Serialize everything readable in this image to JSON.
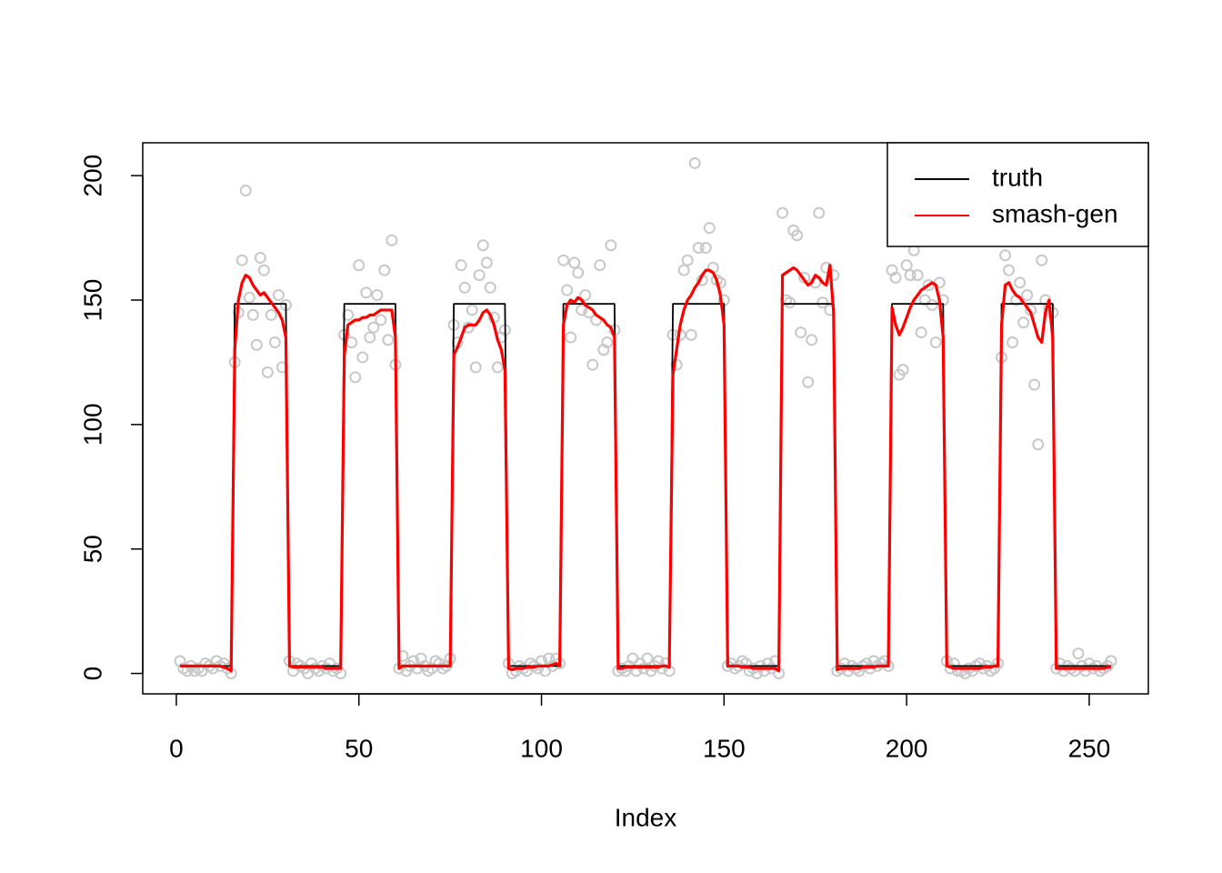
{
  "chart_data": {
    "type": "line",
    "xlabel": "Index",
    "xlim": [
      -9.2,
      266.2
    ],
    "xticks": [
      0,
      50,
      100,
      150,
      200,
      250
    ],
    "ylim": [
      -8.2,
      213.2
    ],
    "yticks": [
      0,
      50,
      100,
      150,
      200
    ],
    "legend": "top-right",
    "x": [
      1,
      2,
      3,
      4,
      5,
      6,
      7,
      8,
      9,
      10,
      11,
      12,
      13,
      14,
      15,
      16,
      17,
      18,
      19,
      20,
      21,
      22,
      23,
      24,
      25,
      26,
      27,
      28,
      29,
      30,
      31,
      32,
      33,
      34,
      35,
      36,
      37,
      38,
      39,
      40,
      41,
      42,
      43,
      44,
      45,
      46,
      47,
      48,
      49,
      50,
      51,
      52,
      53,
      54,
      55,
      56,
      57,
      58,
      59,
      60,
      61,
      62,
      63,
      64,
      65,
      66,
      67,
      68,
      69,
      70,
      71,
      72,
      73,
      74,
      75,
      76,
      77,
      78,
      79,
      80,
      81,
      82,
      83,
      84,
      85,
      86,
      87,
      88,
      89,
      90,
      91,
      92,
      93,
      94,
      95,
      96,
      97,
      98,
      99,
      100,
      101,
      102,
      103,
      104,
      105,
      106,
      107,
      108,
      109,
      110,
      111,
      112,
      113,
      114,
      115,
      116,
      117,
      118,
      119,
      120,
      121,
      122,
      123,
      124,
      125,
      126,
      127,
      128,
      129,
      130,
      131,
      132,
      133,
      134,
      135,
      136,
      137,
      138,
      139,
      140,
      141,
      142,
      143,
      144,
      145,
      146,
      147,
      148,
      149,
      150,
      151,
      152,
      153,
      154,
      155,
      156,
      157,
      158,
      159,
      160,
      161,
      162,
      163,
      164,
      165,
      166,
      167,
      168,
      169,
      170,
      171,
      172,
      173,
      174,
      175,
      176,
      177,
      178,
      179,
      180,
      181,
      182,
      183,
      184,
      185,
      186,
      187,
      188,
      189,
      190,
      191,
      192,
      193,
      194,
      195,
      196,
      197,
      198,
      199,
      200,
      201,
      202,
      203,
      204,
      205,
      206,
      207,
      208,
      209,
      210,
      211,
      212,
      213,
      214,
      215,
      216,
      217,
      218,
      219,
      220,
      221,
      222,
      223,
      224,
      225,
      226,
      227,
      228,
      229,
      230,
      231,
      232,
      233,
      234,
      235,
      236,
      237,
      238,
      239,
      240,
      241,
      242,
      243,
      244,
      245,
      246,
      247,
      248,
      249,
      250,
      251,
      252,
      253,
      254,
      255,
      256
    ],
    "series": [
      {
        "type": "scatter",
        "color": "#c8c8c8",
        "values": [
          5,
          2,
          1,
          3,
          1,
          2,
          1,
          4,
          3,
          2,
          5,
          3,
          4,
          2,
          0,
          125,
          145,
          166,
          194,
          151,
          144,
          132,
          167,
          162,
          121,
          144,
          133,
          152,
          123,
          148,
          5,
          1,
          4,
          3,
          2,
          0,
          4,
          2,
          1,
          3,
          2,
          4,
          1,
          2,
          0,
          136,
          144,
          133,
          119,
          164,
          127,
          153,
          135,
          139,
          152,
          142,
          162,
          134,
          174,
          124,
          2,
          7,
          1,
          3,
          5,
          2,
          6,
          3,
          1,
          2,
          5,
          4,
          2,
          3,
          6,
          140,
          133,
          164,
          155,
          139,
          146,
          123,
          160,
          172,
          165,
          155,
          143,
          123,
          135,
          138,
          4,
          0,
          1,
          3,
          2,
          1,
          4,
          3,
          2,
          5,
          1,
          6,
          3,
          6,
          4,
          166,
          154,
          135,
          165,
          161,
          146,
          152,
          145,
          124,
          142,
          164,
          130,
          133,
          172,
          138,
          1,
          2,
          1,
          3,
          6,
          1,
          4,
          2,
          6,
          1,
          3,
          5,
          2,
          4,
          1,
          136,
          124,
          136,
          162,
          166,
          136,
          205,
          171,
          158,
          171,
          179,
          163,
          158,
          157,
          150,
          3,
          4,
          2,
          3,
          5,
          4,
          1,
          2,
          0,
          3,
          1,
          4,
          2,
          5,
          0,
          185,
          150,
          149,
          178,
          176,
          137,
          159,
          117,
          134,
          157,
          185,
          149,
          163,
          146,
          160,
          1,
          2,
          4,
          1,
          3,
          2,
          1,
          3,
          4,
          2,
          5,
          3,
          4,
          5,
          3,
          162,
          159,
          120,
          122,
          164,
          160,
          170,
          160,
          137,
          150,
          156,
          148,
          133,
          157,
          150,
          5,
          2,
          4,
          1,
          1,
          0,
          2,
          1,
          3,
          4,
          2,
          3,
          1,
          2,
          4,
          127,
          168,
          162,
          133,
          150,
          157,
          141,
          152,
          146,
          116,
          92,
          166,
          150,
          147,
          145,
          2,
          4,
          1,
          3,
          2,
          1,
          8,
          3,
          1,
          4,
          2,
          3,
          1,
          2,
          3,
          5
        ]
      },
      {
        "name": "truth",
        "color": "#000000",
        "values": [
          3,
          3,
          3,
          3,
          3,
          3,
          3,
          3,
          3,
          3,
          3,
          3,
          3,
          3,
          3,
          148.5,
          148.5,
          148.5,
          148.5,
          148.5,
          148.5,
          148.5,
          148.5,
          148.5,
          148.5,
          148.5,
          148.5,
          148.5,
          148.5,
          148.5,
          3,
          3,
          3,
          3,
          3,
          3,
          3,
          3,
          3,
          3,
          3,
          3,
          3,
          3,
          3,
          148.5,
          148.5,
          148.5,
          148.5,
          148.5,
          148.5,
          148.5,
          148.5,
          148.5,
          148.5,
          148.5,
          148.5,
          148.5,
          148.5,
          148.5,
          3,
          3,
          3,
          3,
          3,
          3,
          3,
          3,
          3,
          3,
          3,
          3,
          3,
          3,
          3,
          148.5,
          148.5,
          148.5,
          148.5,
          148.5,
          148.5,
          148.5,
          148.5,
          148.5,
          148.5,
          148.5,
          148.5,
          148.5,
          148.5,
          148.5,
          3,
          3,
          3,
          3,
          3,
          3,
          3,
          3,
          3,
          3,
          3,
          3,
          3,
          3,
          3,
          148.5,
          148.5,
          148.5,
          148.5,
          148.5,
          148.5,
          148.5,
          148.5,
          148.5,
          148.5,
          148.5,
          148.5,
          148.5,
          148.5,
          148.5,
          3,
          3,
          3,
          3,
          3,
          3,
          3,
          3,
          3,
          3,
          3,
          3,
          3,
          3,
          3,
          148.5,
          148.5,
          148.5,
          148.5,
          148.5,
          148.5,
          148.5,
          148.5,
          148.5,
          148.5,
          148.5,
          148.5,
          148.5,
          148.5,
          148.5,
          3,
          3,
          3,
          3,
          3,
          3,
          3,
          3,
          3,
          3,
          3,
          3,
          3,
          3,
          3,
          148.5,
          148.5,
          148.5,
          148.5,
          148.5,
          148.5,
          148.5,
          148.5,
          148.5,
          148.5,
          148.5,
          148.5,
          148.5,
          148.5,
          148.5,
          3,
          3,
          3,
          3,
          3,
          3,
          3,
          3,
          3,
          3,
          3,
          3,
          3,
          3,
          3,
          148.5,
          148.5,
          148.5,
          148.5,
          148.5,
          148.5,
          148.5,
          148.5,
          148.5,
          148.5,
          148.5,
          148.5,
          148.5,
          148.5,
          148.5,
          3,
          3,
          3,
          3,
          3,
          3,
          3,
          3,
          3,
          3,
          3,
          3,
          3,
          3,
          3,
          148.5,
          148.5,
          148.5,
          148.5,
          148.5,
          148.5,
          148.5,
          148.5,
          148.5,
          148.5,
          148.5,
          148.5,
          148.5,
          148.5,
          148.5,
          3,
          3,
          3,
          3,
          3,
          3,
          3,
          3,
          3,
          3,
          3,
          3,
          3,
          3,
          3,
          3
        ]
      },
      {
        "name": "smash-gen",
        "color": "#ff0000",
        "values": [
          3,
          3,
          3,
          3,
          3,
          3,
          3,
          3,
          3,
          3,
          3,
          3,
          2.5,
          2,
          1,
          130,
          150,
          157,
          160,
          159,
          156,
          154,
          152,
          153,
          151,
          149,
          147,
          145,
          142,
          135,
          3,
          2.5,
          2.5,
          2.5,
          2.5,
          2.5,
          2.5,
          2.5,
          2.5,
          2.5,
          2,
          2,
          2,
          2,
          2,
          128,
          140,
          141,
          142,
          142,
          143,
          143,
          144,
          144,
          145,
          146,
          146,
          146,
          146,
          135,
          2,
          3,
          3,
          3,
          3,
          3,
          3,
          3,
          3,
          3,
          3,
          3,
          3,
          3,
          3,
          128,
          131,
          135,
          139,
          140,
          140,
          140,
          142,
          145,
          146,
          144,
          140,
          134,
          130,
          122,
          2,
          1.5,
          2,
          2,
          2,
          2.5,
          2.5,
          2.5,
          3,
          3,
          3,
          3,
          3.5,
          4,
          3,
          140,
          148,
          150,
          149,
          151,
          150,
          148,
          147,
          146,
          144,
          143,
          142,
          140,
          139,
          135,
          2,
          2,
          2.5,
          2.5,
          2.5,
          2.5,
          2.5,
          2.5,
          2.5,
          2.5,
          2.5,
          2.5,
          3,
          3,
          2.5,
          120,
          130,
          140,
          146,
          150,
          152,
          155,
          157,
          160,
          162,
          162,
          161,
          158,
          152,
          140,
          3,
          3,
          3,
          3,
          2.5,
          2.5,
          2.5,
          2,
          2,
          2,
          2,
          2,
          2,
          2,
          1,
          160,
          161,
          162,
          163,
          162,
          160,
          158,
          156,
          157,
          160,
          159,
          157,
          156,
          164,
          145,
          1.5,
          2,
          2,
          2,
          2,
          2,
          2,
          2.5,
          2.5,
          2.5,
          2.5,
          3,
          3,
          3,
          3,
          147,
          140,
          136,
          139,
          143,
          147,
          150,
          152,
          154,
          155,
          156,
          157,
          156,
          150,
          135,
          3,
          2.5,
          2,
          2,
          2,
          2,
          2,
          2,
          2,
          2,
          2.5,
          2.5,
          2.5,
          3,
          3,
          140,
          156,
          157,
          154,
          152,
          151,
          149,
          147,
          145,
          140,
          135,
          133,
          145,
          150,
          135,
          2,
          2,
          2,
          2,
          2,
          2,
          2,
          2,
          2,
          2,
          2,
          2,
          2,
          2,
          2.5,
          2.5
        ]
      }
    ]
  }
}
